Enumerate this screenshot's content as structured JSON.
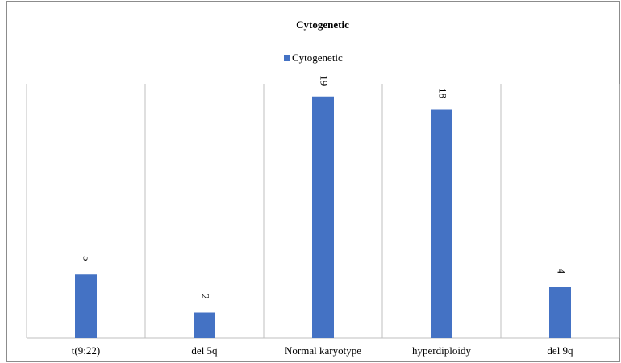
{
  "chart_data": {
    "type": "bar",
    "title": "Cytogenetic",
    "categories": [
      "t(9:22)",
      "del 5q",
      "Normal karyotype",
      "hyperdiploidy",
      "del 9q"
    ],
    "series": [
      {
        "name": "Cytogenetic",
        "color": "#4472c4",
        "values": [
          5,
          2,
          19,
          18,
          4
        ]
      }
    ],
    "ylim": [
      0,
      20
    ],
    "grid": true
  }
}
